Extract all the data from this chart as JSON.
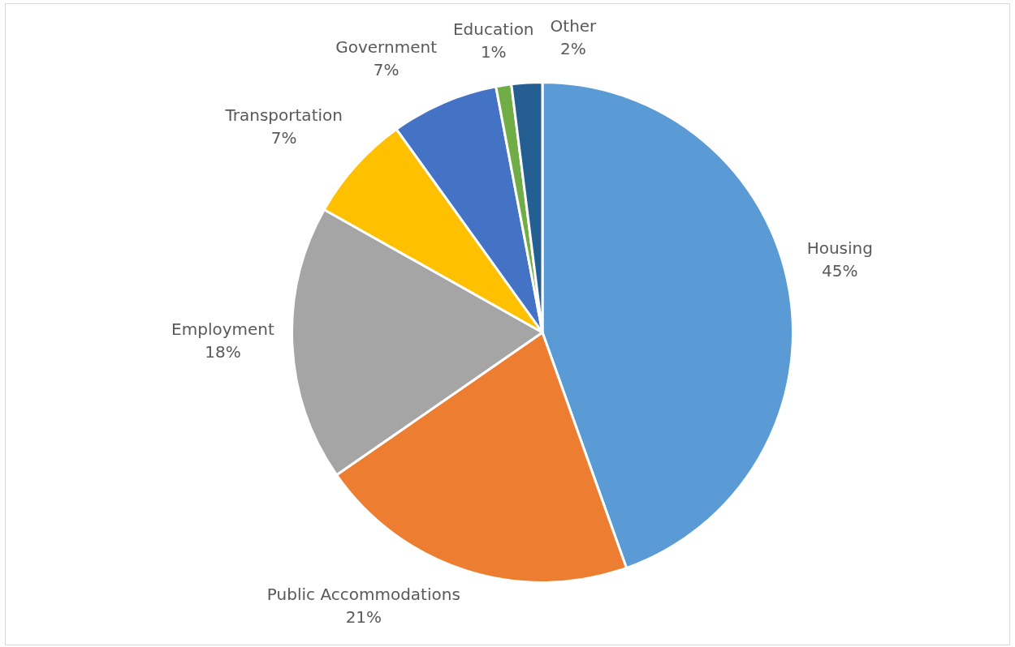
{
  "chart_data": {
    "type": "pie",
    "categories": [
      "Housing",
      "Public Accommodations",
      "Employment",
      "Transportation",
      "Government",
      "Education",
      "Other"
    ],
    "values": [
      45,
      21,
      18,
      7,
      7,
      1,
      2
    ],
    "colors": [
      "#5b9bd5",
      "#ed7d31",
      "#a5a5a5",
      "#ffc000",
      "#4472c4",
      "#70ad47",
      "#255e91"
    ],
    "value_labels": [
      "45%",
      "21%",
      "18%",
      "7%",
      "7%",
      "1%",
      "2%"
    ],
    "legend": false
  }
}
